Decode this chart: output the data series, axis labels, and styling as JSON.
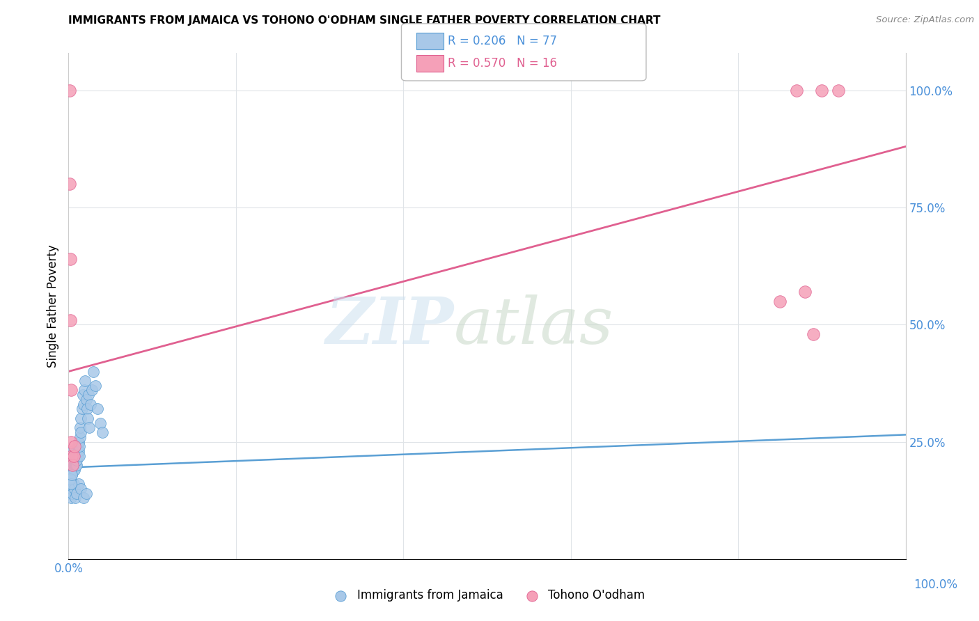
{
  "title": "IMMIGRANTS FROM JAMAICA VS TOHONO O'ODHAM SINGLE FATHER POVERTY CORRELATION CHART",
  "source": "Source: ZipAtlas.com",
  "ylabel": "Single Father Poverty",
  "legend_blue_r": "R = 0.206",
  "legend_blue_n": "N = 77",
  "legend_pink_r": "R = 0.570",
  "legend_pink_n": "N = 16",
  "legend_label_blue": "Immigrants from Jamaica",
  "legend_label_pink": "Tohono O'odham",
  "blue_color": "#a8c8e8",
  "blue_edge_color": "#5a9fd4",
  "pink_color": "#f5a0b8",
  "pink_edge_color": "#e06090",
  "blue_line_color": "#5a9fd4",
  "pink_line_color": "#e06090",
  "blue_scatter_x": [
    0.001,
    0.002,
    0.002,
    0.002,
    0.003,
    0.003,
    0.003,
    0.003,
    0.004,
    0.004,
    0.004,
    0.004,
    0.005,
    0.005,
    0.005,
    0.005,
    0.005,
    0.006,
    0.006,
    0.006,
    0.006,
    0.007,
    0.007,
    0.007,
    0.007,
    0.008,
    0.008,
    0.008,
    0.009,
    0.009,
    0.009,
    0.01,
    0.01,
    0.01,
    0.011,
    0.011,
    0.012,
    0.012,
    0.013,
    0.013,
    0.014,
    0.014,
    0.015,
    0.015,
    0.016,
    0.017,
    0.018,
    0.019,
    0.02,
    0.021,
    0.022,
    0.023,
    0.024,
    0.025,
    0.026,
    0.028,
    0.03,
    0.032,
    0.035,
    0.038,
    0.04,
    0.001,
    0.002,
    0.003,
    0.004,
    0.005,
    0.006,
    0.007,
    0.008,
    0.01,
    0.012,
    0.015,
    0.018,
    0.021,
    0.002,
    0.003,
    0.004
  ],
  "blue_scatter_y": [
    0.2,
    0.22,
    0.18,
    0.21,
    0.19,
    0.22,
    0.2,
    0.21,
    0.18,
    0.2,
    0.22,
    0.21,
    0.19,
    0.21,
    0.2,
    0.22,
    0.23,
    0.2,
    0.21,
    0.19,
    0.22,
    0.2,
    0.21,
    0.22,
    0.19,
    0.21,
    0.2,
    0.22,
    0.2,
    0.21,
    0.22,
    0.2,
    0.21,
    0.23,
    0.22,
    0.24,
    0.23,
    0.25,
    0.22,
    0.24,
    0.26,
    0.28,
    0.27,
    0.3,
    0.32,
    0.35,
    0.33,
    0.36,
    0.38,
    0.34,
    0.32,
    0.3,
    0.35,
    0.28,
    0.33,
    0.36,
    0.4,
    0.37,
    0.32,
    0.29,
    0.27,
    0.15,
    0.14,
    0.13,
    0.15,
    0.14,
    0.16,
    0.15,
    0.13,
    0.14,
    0.16,
    0.15,
    0.13,
    0.14,
    0.17,
    0.16,
    0.18
  ],
  "pink_scatter_x": [
    0.001,
    0.001,
    0.002,
    0.002,
    0.003,
    0.003,
    0.004,
    0.005,
    0.006,
    0.007,
    0.85,
    0.87,
    0.88,
    0.89,
    0.9,
    0.92
  ],
  "pink_scatter_y": [
    1.0,
    0.8,
    0.64,
    0.51,
    0.36,
    0.25,
    0.22,
    0.2,
    0.22,
    0.24,
    0.55,
    1.0,
    0.57,
    0.48,
    1.0,
    1.0
  ],
  "xlim": [
    0.0,
    1.0
  ],
  "ylim": [
    0.0,
    1.08
  ],
  "blue_line_x0": 0.0,
  "blue_line_x1": 1.0,
  "blue_line_y0": 0.195,
  "blue_line_y1": 0.265,
  "pink_line_x0": 0.0,
  "pink_line_x1": 1.0,
  "pink_line_y0": 0.4,
  "pink_line_y1": 0.88,
  "xticks": [
    0.0,
    0.2,
    0.4,
    0.6,
    0.8,
    1.0
  ],
  "yticks": [
    0.0,
    0.25,
    0.5,
    0.75,
    1.0
  ],
  "right_ytick_labels": [
    "",
    "25.0%",
    "50.0%",
    "75.0%",
    "100.0%"
  ],
  "tick_color": "#4a90d9",
  "title_fontsize": 11,
  "label_fontsize": 12,
  "tick_fontsize": 12
}
